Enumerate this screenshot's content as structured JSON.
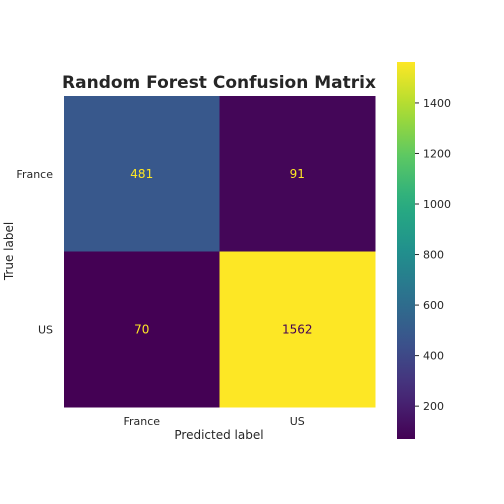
{
  "chart_data": {
    "type": "heatmap",
    "title": "Random Forest Confusion Matrix",
    "xlabel": "Predicted label",
    "ylabel": "True label",
    "x_categories": [
      "France",
      "US"
    ],
    "y_categories": [
      "France",
      "US"
    ],
    "values": [
      [
        481,
        91
      ],
      [
        70,
        1562
      ]
    ],
    "colormap": "viridis",
    "colorbar": {
      "range": [
        70,
        1562
      ],
      "ticks": [
        200,
        400,
        600,
        800,
        1000,
        1200,
        1400
      ]
    },
    "grid": false
  }
}
